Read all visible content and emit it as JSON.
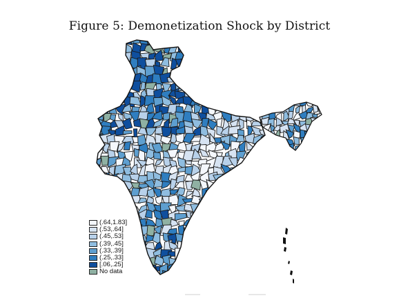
{
  "figure": {
    "title": "Figure 5: Demonetization Shock by District"
  },
  "legend": {
    "items": [
      {
        "label": "(.64,1.83]",
        "color": "#f4f7fc"
      },
      {
        "label": "(.53,.64]",
        "color": "#d6e3f2"
      },
      {
        "label": "(.45,.53]",
        "color": "#b8d1ea"
      },
      {
        "label": "(.39,.45]",
        "color": "#8fbde0"
      },
      {
        "label": "(.33,.39]",
        "color": "#5e9fd0"
      },
      {
        "label": "(.25,.33]",
        "color": "#2f7ec0"
      },
      {
        "label": "[.06,.25]",
        "color": "#0f4f9e"
      },
      {
        "label": "No data",
        "color": "#8fb1a3"
      }
    ]
  },
  "map": {
    "region": "India districts",
    "shading_variable": "Demonetization shock",
    "boundary_color": "#1a1a1a"
  }
}
